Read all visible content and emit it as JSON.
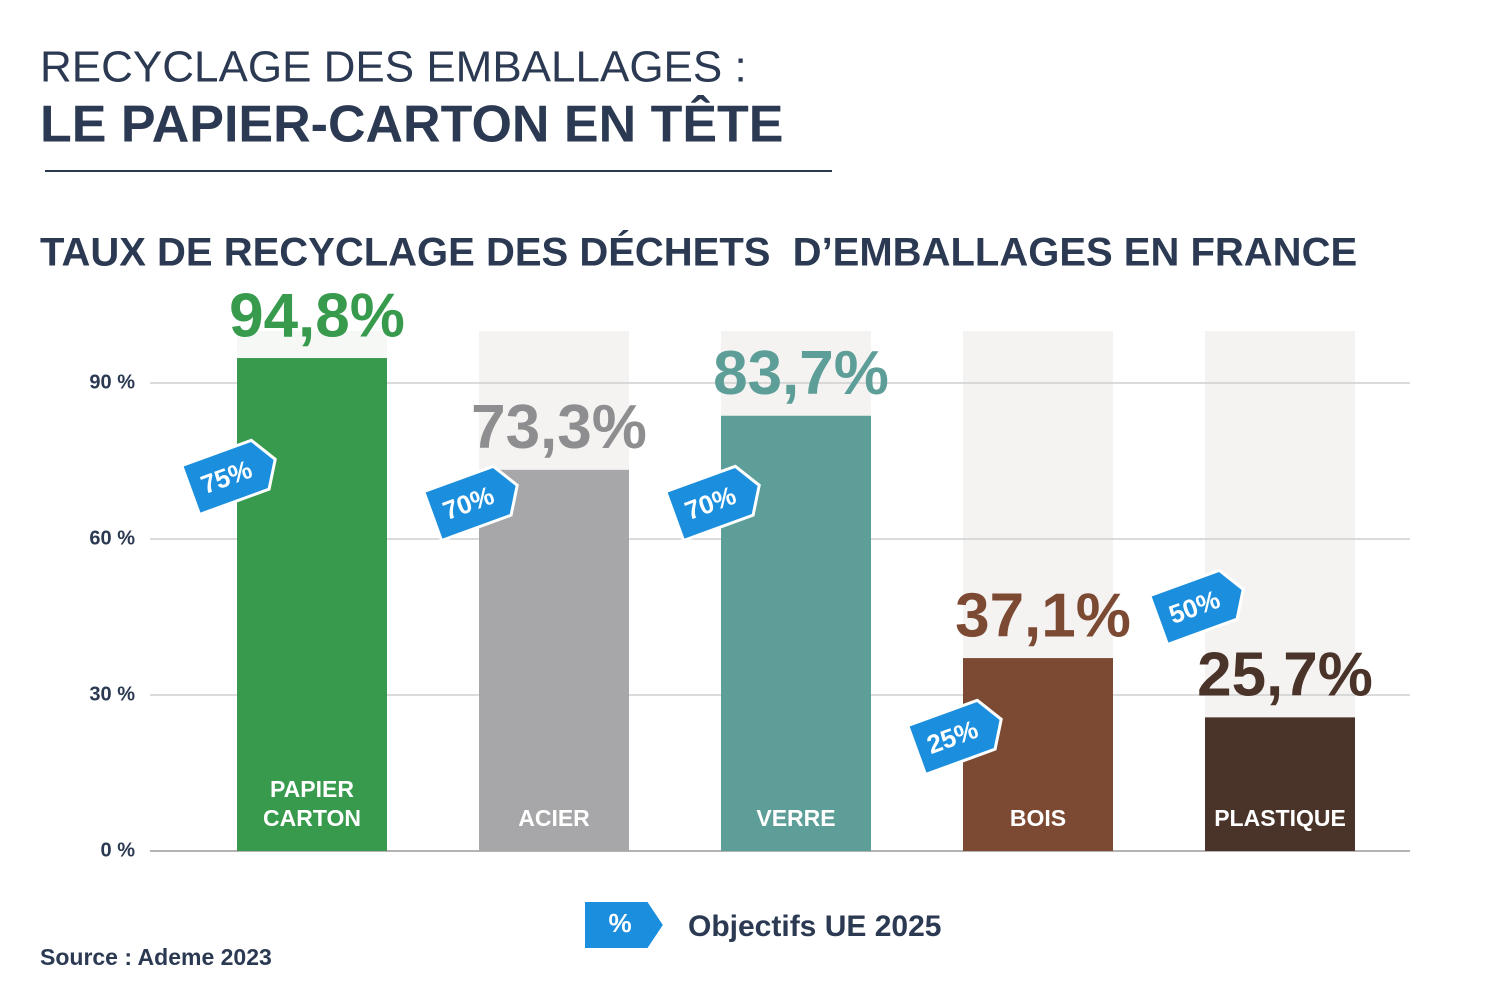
{
  "chart_data": {
    "type": "bar",
    "title": "RECYCLAGE DES EMBALLAGES :",
    "title_line2": "LE PAPIER-CARTON EN TÊTE",
    "subtitle": "TAUX DE RECYCLAGE DES DÉCHETS  D’EMBALLAGES EN FRANCE",
    "source": "Source : Ademe 2023",
    "categories": [
      "PAPIER CARTON",
      "ACIER",
      "VERRE",
      "BOIS",
      "PLASTIQUE"
    ],
    "values": [
      94.8,
      73.3,
      83.7,
      37.1,
      25.7
    ],
    "value_labels": [
      "94,8%",
      "73,3%",
      "83,7%",
      "37,1%",
      "25,7%"
    ],
    "colors": [
      "#379a4d",
      "#a7a6a8",
      "#5e9e98",
      "#7c4a33",
      "#4a3328"
    ],
    "label_colors": [
      "#379a4d",
      "#8e8e90",
      "#5e9e98",
      "#7c4a33",
      "#4a3328"
    ],
    "targets": {
      "name": "Objectifs UE 2025",
      "symbol": "%",
      "color": "#1b8fde",
      "values": [
        75,
        70,
        70,
        25,
        50
      ],
      "value_labels": [
        "75%",
        "70%",
        "70%",
        "25%",
        "50%"
      ]
    },
    "ylim": [
      0,
      100
    ],
    "yticks": [
      {
        "value": 0,
        "label": "0 %"
      },
      {
        "value": 30,
        "label": "30 %"
      },
      {
        "value": 60,
        "label": "60 %"
      },
      {
        "value": 90,
        "label": "90 %"
      }
    ],
    "grid": true
  }
}
